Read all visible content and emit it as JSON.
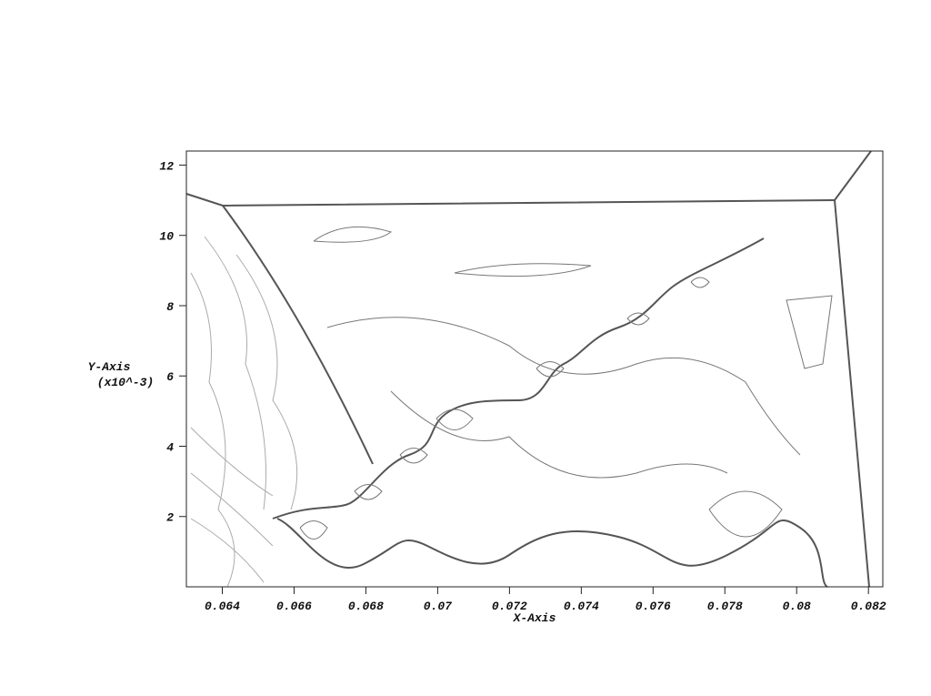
{
  "chart_data": {
    "type": "contour",
    "xlabel": "X-Axis",
    "ylabel": "Y-Axis",
    "ylabel_scale": "(x10^-3)",
    "xlim": [
      0.063,
      0.0824
    ],
    "ylim": [
      0,
      12.4
    ],
    "xticks": [
      0.064,
      0.066,
      0.068,
      0.07,
      0.072,
      0.074,
      0.076,
      0.078,
      0.08,
      0.082
    ],
    "yticks": [
      2,
      4,
      6,
      8,
      10,
      12
    ]
  }
}
